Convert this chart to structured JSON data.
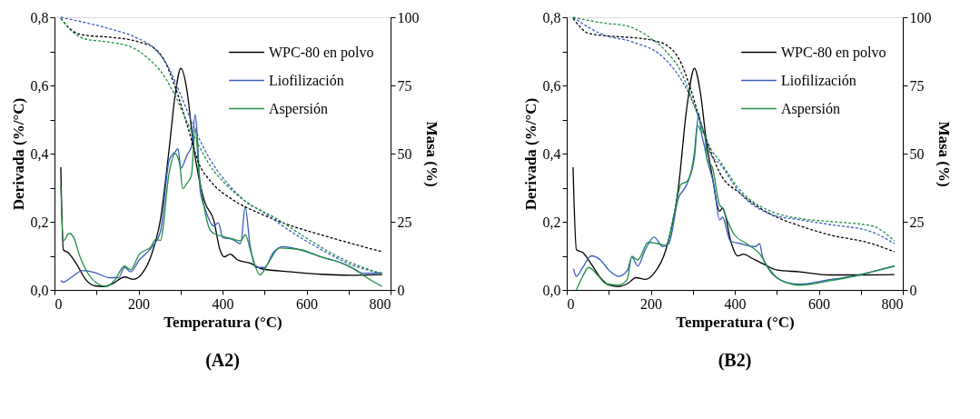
{
  "chart_data": [
    {
      "type": "line",
      "title": "(A2)",
      "xlabel": "Temperatura (°C)",
      "ylabel": "Derivada (%/°C)",
      "y2label": "Masa (%)",
      "legend": "top right",
      "grid": false,
      "xlim": [
        0,
        800
      ],
      "xticks": [
        0,
        {
          "value": 100,
          "label": null
        },
        200,
        {
          "value": 300,
          "label": null
        },
        400,
        {
          "value": 500,
          "label": null
        },
        600,
        {
          "value": 700,
          "label": null
        },
        800
      ],
      "ylim": [
        0,
        0.8
      ],
      "yticks": [
        {
          "value": 0,
          "label": "0,0"
        },
        {
          "value": 0.1,
          "label": null
        },
        {
          "value": 0.2,
          "label": "0,2"
        },
        {
          "value": 0.3,
          "label": null
        },
        {
          "value": 0.4,
          "label": "0,4"
        },
        {
          "value": 0.5,
          "label": null
        },
        {
          "value": 0.6,
          "label": "0,6"
        },
        {
          "value": 0.7,
          "label": null
        },
        {
          "value": 0.8,
          "label": "0,8"
        }
      ],
      "y2lim": [
        0,
        100
      ],
      "y2ticks": [
        0,
        25,
        50,
        75,
        100
      ],
      "series": [
        {
          "name": "WPC-80 en polvo",
          "color": "#000000",
          "line_style": "solid",
          "x": [
            15,
            21,
            32,
            53,
            74,
            96,
            117,
            138,
            167,
            188,
            209,
            230,
            252,
            273,
            287,
            301,
            316,
            330,
            344,
            358,
            379,
            394,
            404,
            418,
            436,
            465,
            493,
            564,
            635,
            706,
            780
          ],
          "values": [
            0.36,
            0.118,
            0.11,
            0.075,
            0.031,
            0.012,
            0.01,
            0.018,
            0.038,
            0.031,
            0.049,
            0.1,
            0.205,
            0.414,
            0.57,
            0.65,
            0.58,
            0.43,
            0.327,
            0.257,
            0.205,
            0.118,
            0.097,
            0.105,
            0.088,
            0.079,
            0.062,
            0.053,
            0.046,
            0.043,
            0.045
          ]
        },
        {
          "name": "Liofilización",
          "color": "#3a5cc0",
          "line_style": "solid",
          "x": [
            15,
            21,
            39,
            67,
            96,
            131,
            152,
            167,
            181,
            202,
            230,
            252,
            273,
            287,
            294,
            301,
            316,
            326,
            335,
            340,
            347,
            358,
            379,
            390,
            401,
            422,
            443,
            454,
            465,
            479,
            500,
            521,
            543,
            585,
            635,
            677,
            706,
            734,
            780
          ],
          "values": [
            0.027,
            0.023,
            0.036,
            0.057,
            0.051,
            0.036,
            0.036,
            0.066,
            0.053,
            0.088,
            0.123,
            0.17,
            0.38,
            0.405,
            0.414,
            0.357,
            0.397,
            0.42,
            0.514,
            0.45,
            0.29,
            0.24,
            0.188,
            0.197,
            0.153,
            0.149,
            0.136,
            0.244,
            0.136,
            0.066,
            0.066,
            0.11,
            0.127,
            0.118,
            0.097,
            0.082,
            0.066,
            0.049,
            0.05
          ]
        },
        {
          "name": "Aspersión",
          "color": "#1f8f45",
          "line_style": "solid",
          "x": [
            15,
            21,
            35,
            46,
            60,
            82,
            103,
            124,
            142,
            167,
            181,
            202,
            230,
            241,
            252,
            273,
            287,
            298,
            305,
            316,
            326,
            335,
            344,
            358,
            369,
            379,
            401,
            422,
            443,
            454,
            468,
            489,
            507,
            536,
            585,
            635,
            677,
            720,
            734,
            780
          ],
          "values": [
            0.305,
            0.144,
            0.166,
            0.153,
            0.1,
            0.044,
            0.018,
            0.01,
            0.027,
            0.07,
            0.059,
            0.105,
            0.127,
            0.149,
            0.145,
            0.344,
            0.4,
            0.37,
            0.297,
            0.314,
            0.336,
            0.475,
            0.344,
            0.231,
            0.179,
            0.166,
            0.157,
            0.15,
            0.144,
            0.162,
            0.11,
            0.044,
            0.075,
            0.123,
            0.118,
            0.097,
            0.082,
            0.057,
            0.044,
            0.01
          ]
        },
        {
          "color": "#000000",
          "line_style": "dashed",
          "axis": "y2",
          "x": [
            15,
            46,
            74,
            131,
            202,
            237,
            259,
            287,
            316,
            344,
            372,
            422,
            493,
            564,
            635,
            734,
            780
          ],
          "values": [
            99.6,
            94.7,
            93.4,
            92.7,
            90.9,
            88.7,
            84.9,
            74.6,
            60.4,
            46.3,
            39.8,
            33.3,
            27.8,
            23.5,
            20.2,
            15.9,
            14
          ]
        },
        {
          "color": "#3a5cc0",
          "line_style": "dashed",
          "axis": "y2",
          "x": [
            15,
            60,
            131,
            202,
            237,
            273,
            301,
            330,
            372,
            408,
            457,
            493,
            564,
            635,
            706,
            780
          ],
          "values": [
            100,
            98.5,
            95.8,
            92,
            88.7,
            81.1,
            71.3,
            60.4,
            47.4,
            39.8,
            32.2,
            28.9,
            21.3,
            14.8,
            9.3,
            6
          ]
        },
        {
          "color": "#1f8f45",
          "line_style": "dashed",
          "axis": "y2",
          "x": [
            15,
            39,
            74,
            131,
            188,
            223,
            259,
            287,
            316,
            344,
            372,
            408,
            457,
            528,
            599,
            670,
            734,
            780
          ],
          "values": [
            99.6,
            95.2,
            92,
            90.9,
            88.7,
            84.9,
            78.9,
            71.3,
            61.5,
            52.8,
            45.2,
            38.7,
            32.2,
            26.2,
            19.1,
            12.6,
            8.3,
            6
          ]
        }
      ]
    },
    {
      "type": "line",
      "title": "(B2)",
      "xlabel": "Temperatura (°C)",
      "ylabel": "Derivada (%/°C)",
      "y2label": "Masa (%)",
      "legend": "top right",
      "grid": false,
      "xlim": [
        0,
        800
      ],
      "xticks": [
        0,
        {
          "value": 100,
          "label": null
        },
        200,
        {
          "value": 300,
          "label": null
        },
        400,
        {
          "value": 500,
          "label": null
        },
        600,
        {
          "value": 700,
          "label": null
        },
        800
      ],
      "ylim": [
        0,
        0.8
      ],
      "yticks": [
        {
          "value": 0,
          "label": "0,0"
        },
        {
          "value": 0.1,
          "label": null
        },
        {
          "value": 0.2,
          "label": "0,2"
        },
        {
          "value": 0.3,
          "label": null
        },
        {
          "value": 0.4,
          "label": "0,4"
        },
        {
          "value": 0.5,
          "label": null
        },
        {
          "value": 0.6,
          "label": "0,6"
        },
        {
          "value": 0.7,
          "label": null
        },
        {
          "value": 0.8,
          "label": "0,8"
        }
      ],
      "y2lim": [
        0,
        100
      ],
      "y2ticks": [
        0,
        25,
        50,
        75,
        100
      ],
      "series": [
        {
          "name": "WPC-80 en polvo",
          "color": "#000000",
          "line_style": "solid",
          "x": [
            15,
            23,
            38,
            59,
            80,
            101,
            123,
            144,
            165,
            187,
            208,
            236,
            265,
            286,
            304,
            318,
            332,
            346,
            364,
            371,
            392,
            406,
            421,
            442,
            470,
            499,
            555,
            626,
            697,
            780
          ],
          "values": [
            0.36,
            0.118,
            0.11,
            0.075,
            0.036,
            0.014,
            0.01,
            0.018,
            0.036,
            0.031,
            0.049,
            0.118,
            0.292,
            0.536,
            0.65,
            0.58,
            0.44,
            0.336,
            0.231,
            0.24,
            0.136,
            0.1,
            0.105,
            0.092,
            0.075,
            0.059,
            0.053,
            0.044,
            0.044,
            0.045
          ]
        },
        {
          "name": "Liofilización",
          "color": "#3a5cc0",
          "line_style": "solid",
          "x": [
            16,
            23,
            38,
            59,
            80,
            101,
            123,
            144,
            155,
            169,
            187,
            208,
            229,
            243,
            265,
            286,
            304,
            314,
            321,
            328,
            335,
            350,
            364,
            371,
            382,
            389,
            413,
            449,
            459,
            466,
            485,
            520,
            555,
            626,
            697,
            726,
            780
          ],
          "values": [
            0.062,
            0.04,
            0.066,
            0.1,
            0.088,
            0.057,
            0.04,
            0.057,
            0.097,
            0.07,
            0.118,
            0.155,
            0.127,
            0.136,
            0.266,
            0.31,
            0.388,
            0.518,
            0.457,
            0.42,
            0.379,
            0.31,
            0.205,
            0.214,
            0.17,
            0.144,
            0.136,
            0.127,
            0.136,
            0.097,
            0.057,
            0.023,
            0.017,
            0.03,
            0.044,
            0.053,
            0.07
          ]
        },
        {
          "name": "Aspersión",
          "color": "#1f8f45",
          "line_style": "solid",
          "x": [
            23,
            38,
            52,
            73,
            94,
            123,
            144,
            155,
            169,
            194,
            215,
            236,
            257,
            272,
            286,
            304,
            311,
            320,
            328,
            335,
            346,
            364,
            371,
            382,
            399,
            428,
            463,
            485,
            520,
            555,
            626,
            697,
            726,
            780
          ],
          "values": [
            0.0,
            0.04,
            0.066,
            0.044,
            0.018,
            0.014,
            0.031,
            0.099,
            0.088,
            0.14,
            0.136,
            0.131,
            0.231,
            0.31,
            0.318,
            0.405,
            0.483,
            0.466,
            0.457,
            0.379,
            0.362,
            0.249,
            0.24,
            0.205,
            0.162,
            0.136,
            0.1,
            0.053,
            0.023,
            0.014,
            0.027,
            0.044,
            0.053,
            0.07
          ]
        },
        {
          "color": "#000000",
          "line_style": "dashed",
          "axis": "y2",
          "x": [
            15,
            52,
            87,
            158,
            208,
            243,
            272,
            293,
            321,
            343,
            364,
            413,
            485,
            555,
            626,
            726,
            780
          ],
          "values": [
            99.6,
            94.1,
            93.3,
            92.5,
            91.4,
            89.2,
            83.3,
            74.6,
            60.4,
            50.7,
            43,
            35.4,
            27.8,
            23.5,
            20.2,
            17,
            14
          ]
        },
        {
          "color": "#3a5cc0",
          "line_style": "dashed",
          "axis": "y2",
          "x": [
            15,
            52,
            87,
            158,
            229,
            265,
            293,
            321,
            343,
            364,
            413,
            485,
            555,
            626,
            726,
            780
          ],
          "values": [
            100,
            96.3,
            93.6,
            90.9,
            85.4,
            78.9,
            71.3,
            60.4,
            49.6,
            46.3,
            35.4,
            27.8,
            25.7,
            24,
            21.3,
            17
          ]
        },
        {
          "color": "#1f8f45",
          "line_style": "dashed",
          "axis": "y2",
          "x": [
            15,
            87,
            144,
            194,
            236,
            272,
            300,
            328,
            343,
            364,
            413,
            485,
            555,
            626,
            726,
            780
          ],
          "values": [
            100,
            97.9,
            96.8,
            93,
            87.6,
            80,
            69.1,
            57.2,
            51.7,
            47.4,
            36.5,
            28.9,
            26.2,
            25.1,
            23.5,
            18
          ]
        }
      ]
    }
  ]
}
